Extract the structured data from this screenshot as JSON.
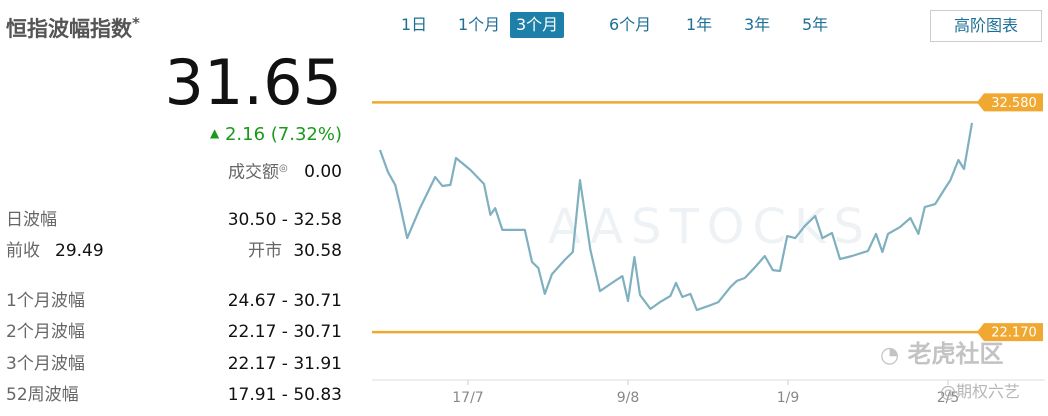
{
  "panel": {
    "title": "恒指波幅指数",
    "title_mark": "*",
    "price": "31.65",
    "change": "2.16 (7.32%)",
    "turnover_label": "成交额",
    "turnover": "0.00",
    "rows": [
      {
        "label": "日波幅",
        "value": "30.50 - 32.58"
      },
      {
        "label": "前收",
        "value": "29.49",
        "label2": "开市",
        "value2": "30.58"
      },
      {
        "label": "1个月波幅",
        "value": "24.67 - 30.71"
      },
      {
        "label": "2个月波幅",
        "value": "22.17 - 30.71"
      },
      {
        "label": "3个月波幅",
        "value": "22.17 - 31.91"
      },
      {
        "label": "52周波幅",
        "value": "17.91 - 50.83"
      }
    ]
  },
  "tabs": [
    "1日",
    "1个月",
    "3个月",
    "6个月",
    "1年",
    "3年",
    "5年"
  ],
  "active_tab": 2,
  "advanced_chart": "高阶图表",
  "watermarks": [
    "老虎社区",
    "@期权六艺"
  ],
  "chart_data": {
    "type": "line",
    "color": "#7fb0c0",
    "watermark": "AASTOCKS",
    "x": [
      0,
      1,
      1.9,
      2.5,
      3.4,
      5,
      6.9,
      7.8,
      8.8,
      9.5,
      11.3,
      13,
      13.8,
      14.4,
      15.3,
      16.9,
      18.1,
      19,
      19.8,
      20.6,
      21.5,
      23.1,
      24.1,
      25,
      26.3,
      27.5,
      29,
      30.3,
      31,
      31.8,
      32.5,
      33.8,
      35,
      36.3,
      37,
      37.8,
      38.8,
      39.6,
      41,
      42.3,
      43.8,
      44.6,
      45.6,
      46.9,
      48.1,
      49.1,
      50,
      50.9,
      51.9,
      53.1,
      54.4,
      55.3,
      56.5,
      57.5,
      59,
      61,
      62,
      62.8,
      63.5,
      65,
      66.3,
      67.3,
      68.1,
      69.4,
      70.5,
      71.3,
      72.3,
      73,
      74
    ],
    "values": [
      30.42,
      29.42,
      28.84,
      27.93,
      26.43,
      27.79,
      29.2,
      28.79,
      28.84,
      30.06,
      29.52,
      28.88,
      27.48,
      27.79,
      26.8,
      26.8,
      26.8,
      25.35,
      25.07,
      23.9,
      24.8,
      25.44,
      25.8,
      29.06,
      25.89,
      24.03,
      24.4,
      24.71,
      23.58,
      25.57,
      23.85,
      23.22,
      23.53,
      23.81,
      24.4,
      23.76,
      23.9,
      23.17,
      23.35,
      23.53,
      24.21,
      24.49,
      24.62,
      25.12,
      25.62,
      24.98,
      24.94,
      26.52,
      26.43,
      26.98,
      27.43,
      26.43,
      26.66,
      25.48,
      25.62,
      25.85,
      26.62,
      25.8,
      26.62,
      26.93,
      27.34,
      26.62,
      27.84,
      27.97,
      28.61,
      29.06,
      29.97,
      29.56,
      31.65
    ],
    "xlim": [
      0,
      74
    ],
    "ylim": [
      20,
      34.5
    ],
    "xticks": [
      {
        "value": 11,
        "label": "17/7"
      },
      {
        "value": 31,
        "label": "9/8"
      },
      {
        "value": 51,
        "label": "1/9"
      },
      {
        "value": 71,
        "label": "2/5"
      }
    ],
    "reference_lines": [
      {
        "value": 32.58,
        "label": "32.580",
        "color": "#f0a830"
      },
      {
        "value": 22.17,
        "label": "22.170",
        "color": "#f0a830"
      }
    ]
  }
}
